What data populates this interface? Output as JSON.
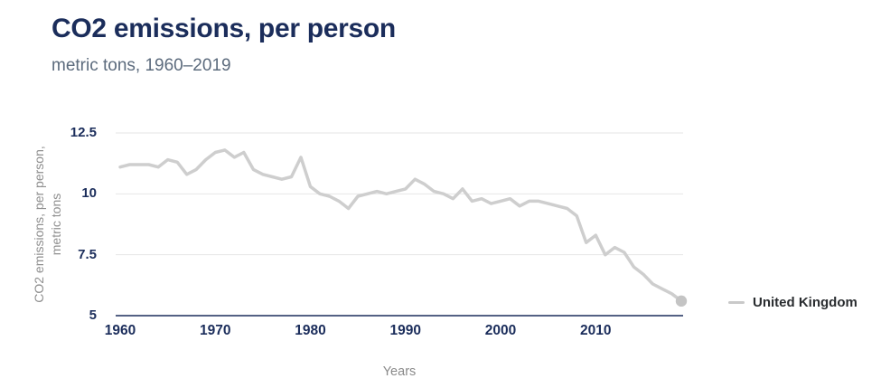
{
  "header": {
    "title": "CO2 emissions, per person",
    "subtitle": "metric tons, 1960–2019"
  },
  "colors": {
    "title_text": "#1b2d5b",
    "subtitle_text": "#5c6b7d",
    "tick_text": "#1b2d5b",
    "axis_title_text": "#8f8f8f",
    "gridline": "#e6e6e6",
    "axis_line": "#1b2d5b",
    "series_line": "#cecece",
    "series_endpoint_dot": "#c4c4c4",
    "legend_swatch": "#c9c9c9",
    "legend_text": "#292c2f",
    "background": "#ffffff"
  },
  "legend": {
    "position": "right",
    "items": [
      {
        "label": "United Kingdom",
        "swatch_color": "#c9c9c9"
      }
    ]
  },
  "chart_data": {
    "type": "line",
    "title": "CO2 emissions, per person",
    "subtitle": "metric tons, 1960–2019",
    "xlabel": "Years",
    "ylabel": "CO2 emissions, per person, metric tons",
    "ylabel_lines": [
      "CO2 emissions, per person,",
      "metric tons"
    ],
    "xlim": [
      1960,
      2019
    ],
    "ylim": [
      5,
      12.5
    ],
    "grid": "horizontal",
    "legend_position": "right",
    "x_tick_labels": [
      "1960",
      "1970",
      "1980",
      "1990",
      "2000",
      "2010"
    ],
    "x_tick_values": [
      1960,
      1970,
      1980,
      1990,
      2000,
      2010
    ],
    "y_tick_labels": [
      "5",
      "7.5",
      "10",
      "12.5"
    ],
    "y_tick_values": [
      5,
      7.5,
      10,
      12.5
    ],
    "endpoint_marker": true,
    "series": [
      {
        "name": "United Kingdom",
        "x": [
          1960,
          1961,
          1962,
          1963,
          1964,
          1965,
          1966,
          1967,
          1968,
          1969,
          1970,
          1971,
          1972,
          1973,
          1974,
          1975,
          1976,
          1977,
          1978,
          1979,
          1980,
          1981,
          1982,
          1983,
          1984,
          1985,
          1986,
          1987,
          1988,
          1989,
          1990,
          1991,
          1992,
          1993,
          1994,
          1995,
          1996,
          1997,
          1998,
          1999,
          2000,
          2001,
          2002,
          2003,
          2004,
          2005,
          2006,
          2007,
          2008,
          2009,
          2010,
          2011,
          2012,
          2013,
          2014,
          2015,
          2016,
          2017,
          2018,
          2019
        ],
        "values": [
          11.1,
          11.2,
          11.2,
          11.2,
          11.1,
          11.4,
          11.3,
          10.8,
          11.0,
          11.4,
          11.7,
          11.8,
          11.5,
          11.7,
          11.0,
          10.8,
          10.7,
          10.6,
          10.7,
          11.5,
          10.3,
          10.0,
          9.9,
          9.7,
          9.4,
          9.9,
          10.0,
          10.1,
          10.0,
          10.1,
          10.2,
          10.6,
          10.4,
          10.1,
          10.0,
          9.8,
          10.2,
          9.7,
          9.8,
          9.6,
          9.7,
          9.8,
          9.5,
          9.7,
          9.7,
          9.6,
          9.5,
          9.4,
          9.1,
          8.0,
          8.3,
          7.5,
          7.8,
          7.6,
          7.0,
          6.7,
          6.3,
          6.1,
          5.9,
          5.6
        ]
      }
    ]
  }
}
